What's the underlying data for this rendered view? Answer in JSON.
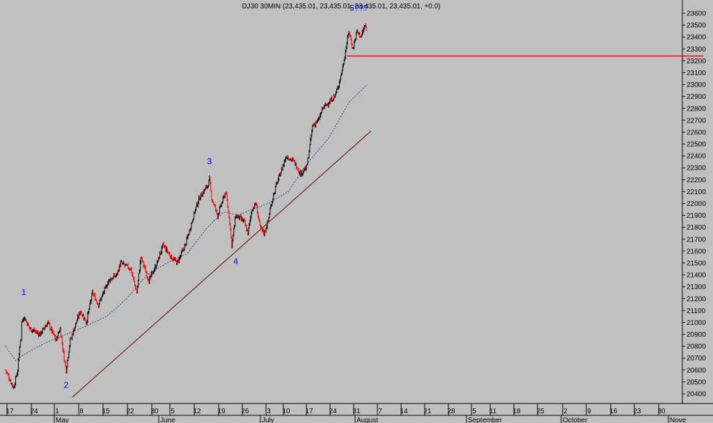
{
  "chart_data": {
    "type": "candlestick",
    "title": "DJ30 30MIN (23,435.01, 23,435.01, 23,435.01, 23,435.01, +0.0)",
    "ylim": [
      20350,
      23700
    ],
    "y_ticks": [
      20400,
      20500,
      20600,
      20700,
      20800,
      20900,
      21000,
      21100,
      21200,
      21300,
      21400,
      21500,
      21600,
      21700,
      21800,
      21900,
      22000,
      22100,
      22200,
      22300,
      22400,
      22500,
      22600,
      22700,
      22800,
      22900,
      23000,
      23100,
      23200,
      23300,
      23400,
      23500,
      23600
    ],
    "y_tick_labels": [
      "20400",
      "20500",
      "20600",
      "20700",
      "20800",
      "20900",
      "21000",
      "21100",
      "21200",
      "21300",
      "21400",
      "21500",
      "21600",
      "21700",
      "21800",
      "21900",
      "22000",
      "22100",
      "22200",
      "22300",
      "22400",
      "22500",
      "22600",
      "22700",
      "22800",
      "22900",
      "23000",
      "23100",
      "23200",
      "23300",
      "23400",
      "23500",
      "23600"
    ],
    "x_ticks": [
      "17",
      "24",
      "1",
      "8",
      "15",
      "22",
      "30",
      "5",
      "12",
      "19",
      "26",
      "3",
      "10",
      "17",
      "24",
      "31",
      "7",
      "14",
      "21",
      "28",
      "5",
      "11",
      "18",
      "25",
      "2",
      "9",
      "16",
      "23",
      "30"
    ],
    "months": [
      "May",
      "June",
      "July",
      "August",
      "September",
      "October",
      "Nove"
    ],
    "price_path": [
      {
        "d": 0,
        "v": 20600
      },
      {
        "d": 4,
        "v": 20450
      },
      {
        "d": 6,
        "v": 20600
      },
      {
        "d": 7,
        "v": 20800
      },
      {
        "d": 8,
        "v": 21000
      },
      {
        "d": 9,
        "v": 21050
      },
      {
        "d": 12,
        "v": 20950
      },
      {
        "d": 17,
        "v": 20900
      },
      {
        "d": 21,
        "v": 21000
      },
      {
        "d": 25,
        "v": 20850
      },
      {
        "d": 27,
        "v": 20950
      },
      {
        "d": 29,
        "v": 20700
      },
      {
        "d": 30,
        "v": 20600
      },
      {
        "d": 32,
        "v": 20850
      },
      {
        "d": 35,
        "v": 21000
      },
      {
        "d": 37,
        "v": 21100
      },
      {
        "d": 40,
        "v": 21000
      },
      {
        "d": 43,
        "v": 21250
      },
      {
        "d": 46,
        "v": 21150
      },
      {
        "d": 51,
        "v": 21350
      },
      {
        "d": 55,
        "v": 21400
      },
      {
        "d": 57,
        "v": 21500
      },
      {
        "d": 62,
        "v": 21450
      },
      {
        "d": 65,
        "v": 21250
      },
      {
        "d": 67,
        "v": 21550
      },
      {
        "d": 71,
        "v": 21350
      },
      {
        "d": 75,
        "v": 21500
      },
      {
        "d": 78,
        "v": 21650
      },
      {
        "d": 82,
        "v": 21550
      },
      {
        "d": 85,
        "v": 21500
      },
      {
        "d": 89,
        "v": 21650
      },
      {
        "d": 94,
        "v": 21950
      },
      {
        "d": 96,
        "v": 22050
      },
      {
        "d": 100,
        "v": 22150
      },
      {
        "d": 101,
        "v": 22200
      },
      {
        "d": 102,
        "v": 22050
      },
      {
        "d": 105,
        "v": 21900
      },
      {
        "d": 107,
        "v": 22000
      },
      {
        "d": 109,
        "v": 22100
      },
      {
        "d": 111,
        "v": 21850
      },
      {
        "d": 112,
        "v": 21650
      },
      {
        "d": 114,
        "v": 21900
      },
      {
        "d": 118,
        "v": 21850
      },
      {
        "d": 120,
        "v": 21750
      },
      {
        "d": 122,
        "v": 21950
      },
      {
        "d": 124,
        "v": 22000
      },
      {
        "d": 126,
        "v": 21800
      },
      {
        "d": 128,
        "v": 21750
      },
      {
        "d": 130,
        "v": 21850
      },
      {
        "d": 131,
        "v": 21950
      },
      {
        "d": 133,
        "v": 22100
      },
      {
        "d": 136,
        "v": 22250
      },
      {
        "d": 139,
        "v": 22400
      },
      {
        "d": 143,
        "v": 22350
      },
      {
        "d": 146,
        "v": 22250
      },
      {
        "d": 149,
        "v": 22300
      },
      {
        "d": 150,
        "v": 22400
      },
      {
        "d": 152,
        "v": 22650
      },
      {
        "d": 155,
        "v": 22700
      },
      {
        "d": 157,
        "v": 22800
      },
      {
        "d": 160,
        "v": 22850
      },
      {
        "d": 163,
        "v": 22900
      },
      {
        "d": 165,
        "v": 23000
      },
      {
        "d": 167,
        "v": 23150
      },
      {
        "d": 168,
        "v": 23250
      },
      {
        "d": 169,
        "v": 23350
      },
      {
        "d": 170,
        "v": 23450
      },
      {
        "d": 172,
        "v": 23300
      },
      {
        "d": 174,
        "v": 23450
      },
      {
        "d": 176,
        "v": 23400
      },
      {
        "d": 178,
        "v": 23500
      },
      {
        "d": 179,
        "v": 23430
      }
    ],
    "moving_average": [
      {
        "d": 0,
        "v": 20800
      },
      {
        "d": 5,
        "v": 20680
      },
      {
        "d": 10,
        "v": 20740
      },
      {
        "d": 20,
        "v": 20830
      },
      {
        "d": 30,
        "v": 20900
      },
      {
        "d": 40,
        "v": 20970
      },
      {
        "d": 50,
        "v": 21050
      },
      {
        "d": 60,
        "v": 21200
      },
      {
        "d": 70,
        "v": 21400
      },
      {
        "d": 80,
        "v": 21500
      },
      {
        "d": 90,
        "v": 21580
      },
      {
        "d": 100,
        "v": 21800
      },
      {
        "d": 108,
        "v": 21930
      },
      {
        "d": 115,
        "v": 21900
      },
      {
        "d": 122,
        "v": 21950
      },
      {
        "d": 130,
        "v": 22000
      },
      {
        "d": 140,
        "v": 22100
      },
      {
        "d": 150,
        "v": 22350
      },
      {
        "d": 160,
        "v": 22550
      },
      {
        "d": 170,
        "v": 22850
      },
      {
        "d": 179,
        "v": 23000
      }
    ],
    "trendline": {
      "from": {
        "d": 33,
        "v": 20370
      },
      "to": {
        "d": 181,
        "v": 22610
      }
    },
    "resistance": {
      "value": 23240,
      "from_d": 169
    },
    "wave_labels": [
      {
        "text": "1",
        "d": 9,
        "v": 21230
      },
      {
        "text": "2",
        "d": 30,
        "v": 20450
      },
      {
        "text": "3",
        "d": 101,
        "v": 22330
      },
      {
        "text": "4",
        "d": 114,
        "v": 21490
      },
      {
        "text": "5???",
        "d": 175,
        "v": 23620
      }
    ],
    "colors": {
      "background": "#c0c0c0",
      "up": "#000000",
      "down": "#ff0000",
      "moving_average": "#1f3aa0",
      "trendline": "#600000",
      "resistance": "#ff0000",
      "wave_label": "#0000ff"
    },
    "grid": false
  }
}
